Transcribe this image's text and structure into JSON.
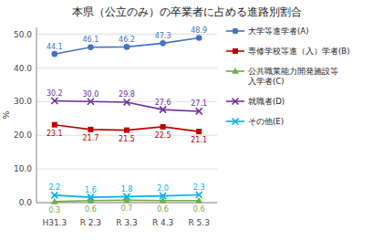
{
  "chart_data": {
    "type": "line",
    "title": "本県（公立のみ）の卒業者に占める進路別割合",
    "y_label": "%",
    "categories": [
      "H31.3",
      "R 2.3",
      "R 3.3",
      "R 4.3",
      "R 5.3"
    ],
    "series": [
      {
        "name": "大学等進学者(A)",
        "color": "#4472C4",
        "marker": "circle",
        "values": [
          44.1,
          46.1,
          46.2,
          47.3,
          48.9
        ],
        "value_labels": [
          "44.1",
          "46.1",
          "46.2",
          "47.3",
          "48.9"
        ]
      },
      {
        "name": "専修学校等進（入）学者(B)",
        "color": "#C00000",
        "marker": "square",
        "values": [
          23.1,
          21.7,
          21.5,
          22.5,
          21.1
        ],
        "value_labels": [
          "23.1",
          "21.7",
          "21.5",
          "22.5",
          "21.1"
        ]
      },
      {
        "name": "公共職業能力開発施設等\n入学者(C)",
        "color": "#70AD47",
        "marker": "triangle",
        "values": [
          0.3,
          0.6,
          0.7,
          0.6,
          0.6
        ],
        "value_labels": [
          "0.3",
          "0.6",
          "0.7",
          "0.6",
          "0.6"
        ]
      },
      {
        "name": "就職者(D)",
        "color": "#7030A0",
        "marker": "x",
        "values": [
          30.2,
          30.0,
          29.8,
          27.6,
          27.1
        ],
        "value_labels": [
          "30.2",
          "30.0",
          "29.8",
          "27.6",
          "27.1"
        ]
      },
      {
        "name": "その他(E)",
        "color": "#00B0F0",
        "marker": "x",
        "values": [
          2.2,
          1.6,
          1.8,
          2.0,
          2.3
        ],
        "value_labels": [
          "2.2",
          "1.6",
          "1.8",
          "2.0",
          "2.3"
        ]
      }
    ],
    "ylim": [
      0.0,
      52.0
    ],
    "yticks": [
      {
        "value": 0.0,
        "label": "0.0"
      },
      {
        "value": 10.0,
        "label": "10.0"
      },
      {
        "value": 20.0,
        "label": "20.0"
      },
      {
        "value": 30.0,
        "label": "30.0"
      },
      {
        "value": 40.0,
        "label": "40.0"
      },
      {
        "value": 50.0,
        "label": "50.0"
      }
    ],
    "grid": true,
    "legend": "right",
    "data_labels": true
  }
}
